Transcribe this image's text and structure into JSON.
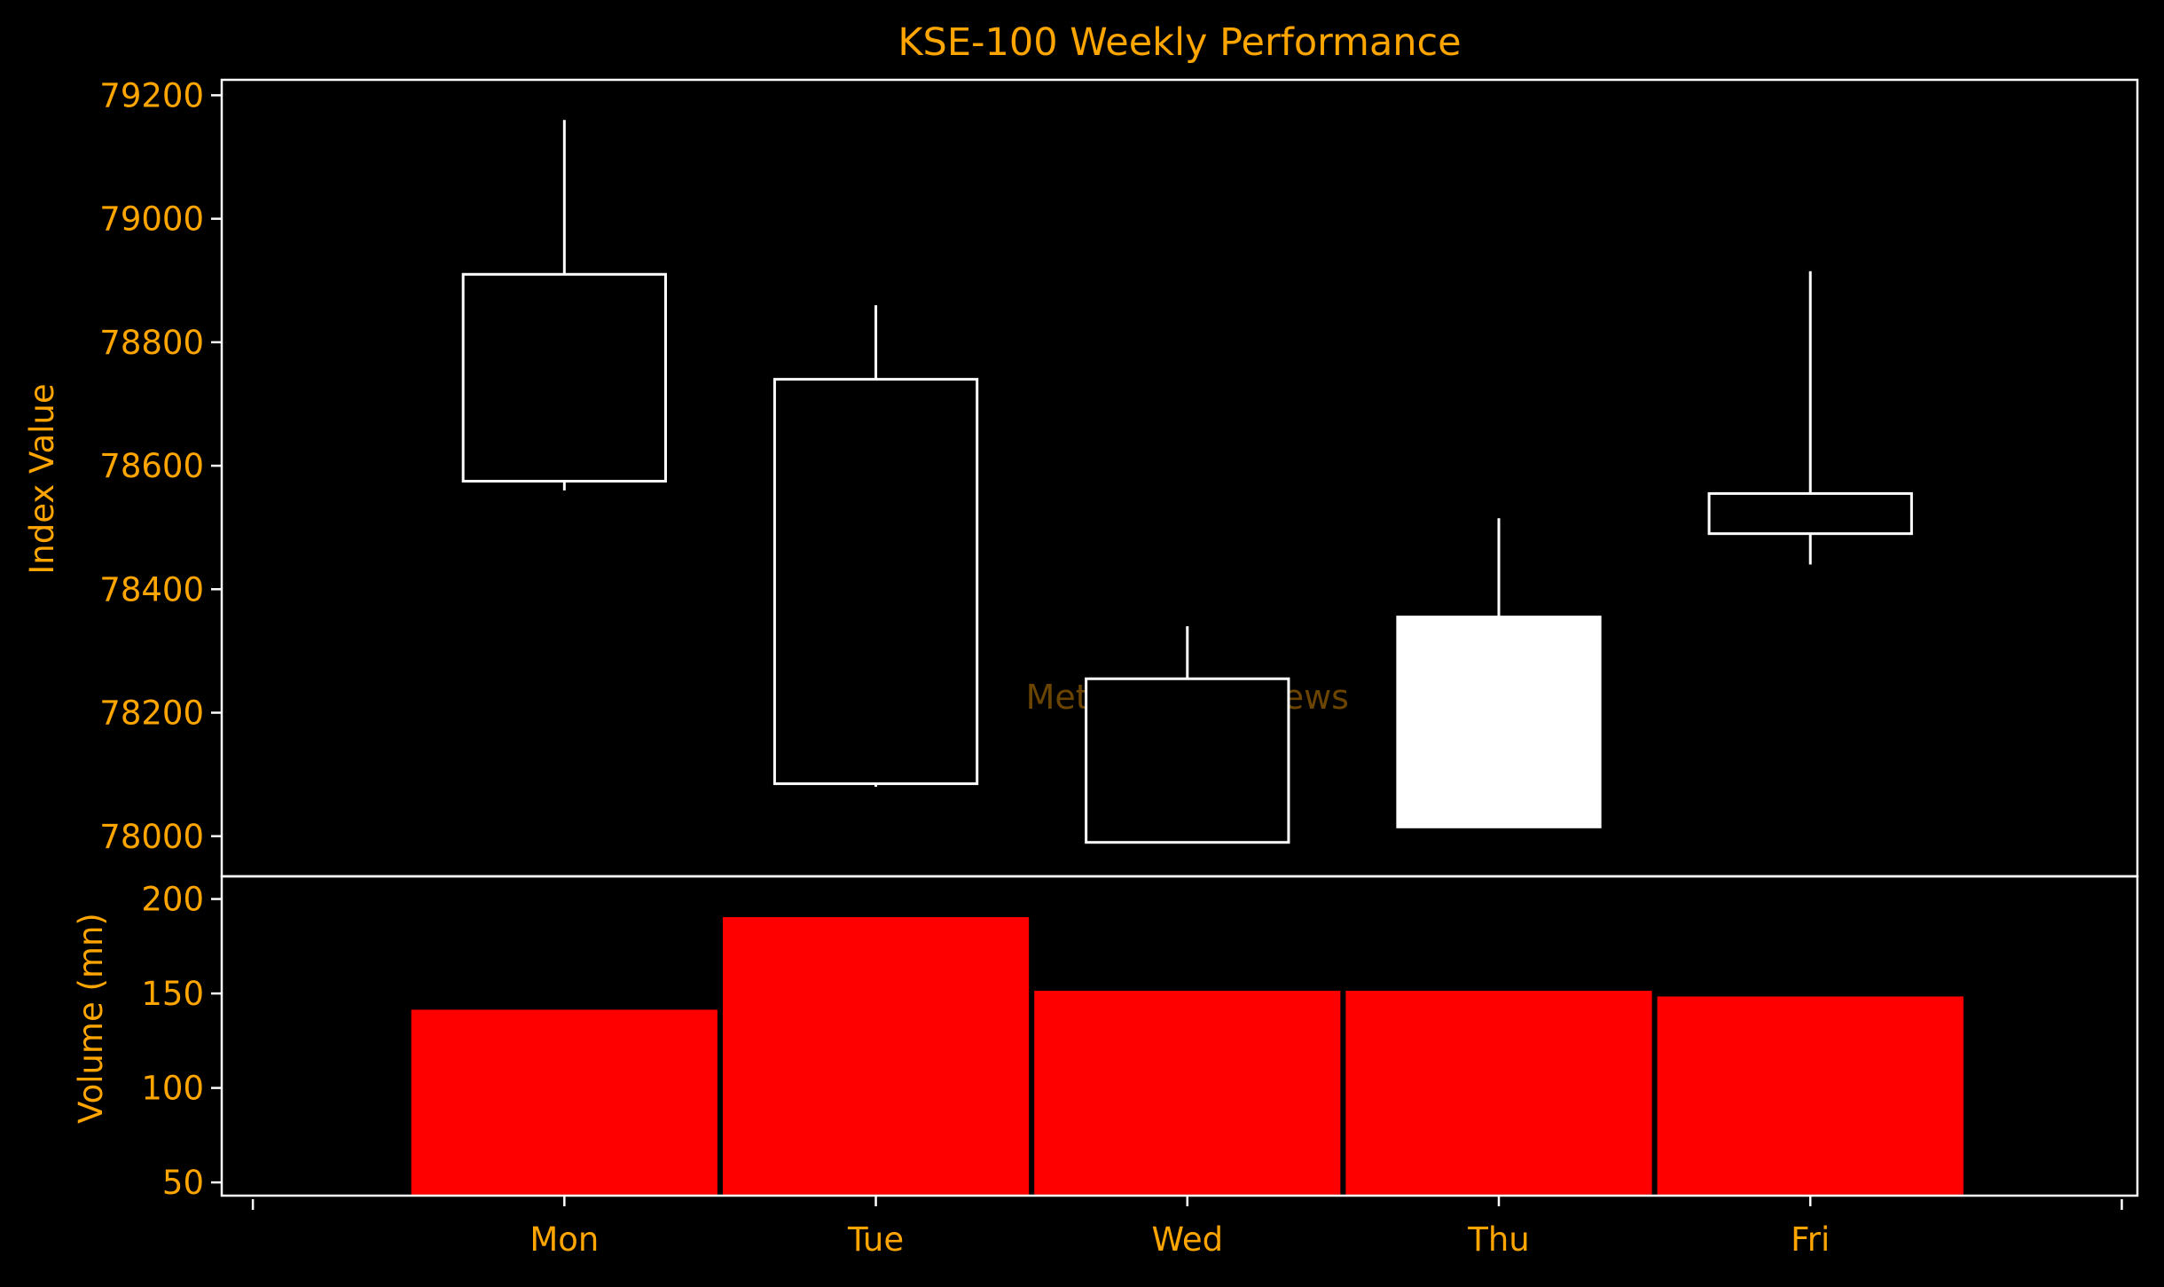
{
  "chart_data": [
    {
      "type": "candlestick",
      "title": "KSE-100 Weekly Performance",
      "ylabel": "Index Value",
      "xlabel": "",
      "categories": [
        "Mon",
        "Tue",
        "Wed",
        "Thu",
        "Fri"
      ],
      "ylim": [
        77935,
        79225
      ],
      "yticks": [
        78000,
        78200,
        78400,
        78600,
        78800,
        79000,
        79200
      ],
      "ohlc": [
        {
          "day": "Mon",
          "open": 78910,
          "high": 79160,
          "low": 78560,
          "close": 78575
        },
        {
          "day": "Tue",
          "open": 78740,
          "high": 78860,
          "low": 78080,
          "close": 78085
        },
        {
          "day": "Wed",
          "open": 78255,
          "high": 78340,
          "low": 77990,
          "close": 77990
        },
        {
          "day": "Thu",
          "open": 78015,
          "high": 78515,
          "low": 78015,
          "close": 78355
        },
        {
          "day": "Fri",
          "open": 78555,
          "high": 78915,
          "low": 78440,
          "close": 78490
        }
      ],
      "colors": {
        "up": "#FFFFFF",
        "down": "#000000",
        "edge": "#FFFFFF"
      },
      "watermark": "Mettis Global News"
    },
    {
      "type": "bar",
      "ylabel": "Volume (mn)",
      "categories": [
        "Mon",
        "Tue",
        "Wed",
        "Thu",
        "Fri"
      ],
      "values": [
        142,
        191,
        152,
        152,
        149
      ],
      "ylim": [
        43,
        212
      ],
      "yticks": [
        50,
        100,
        150,
        200
      ],
      "colors": {
        "bar": "#FF0000",
        "edge": "#000000"
      }
    }
  ],
  "theme": {
    "background": "#000000",
    "text": "#FFA500",
    "frame": "#FFFFFF"
  }
}
